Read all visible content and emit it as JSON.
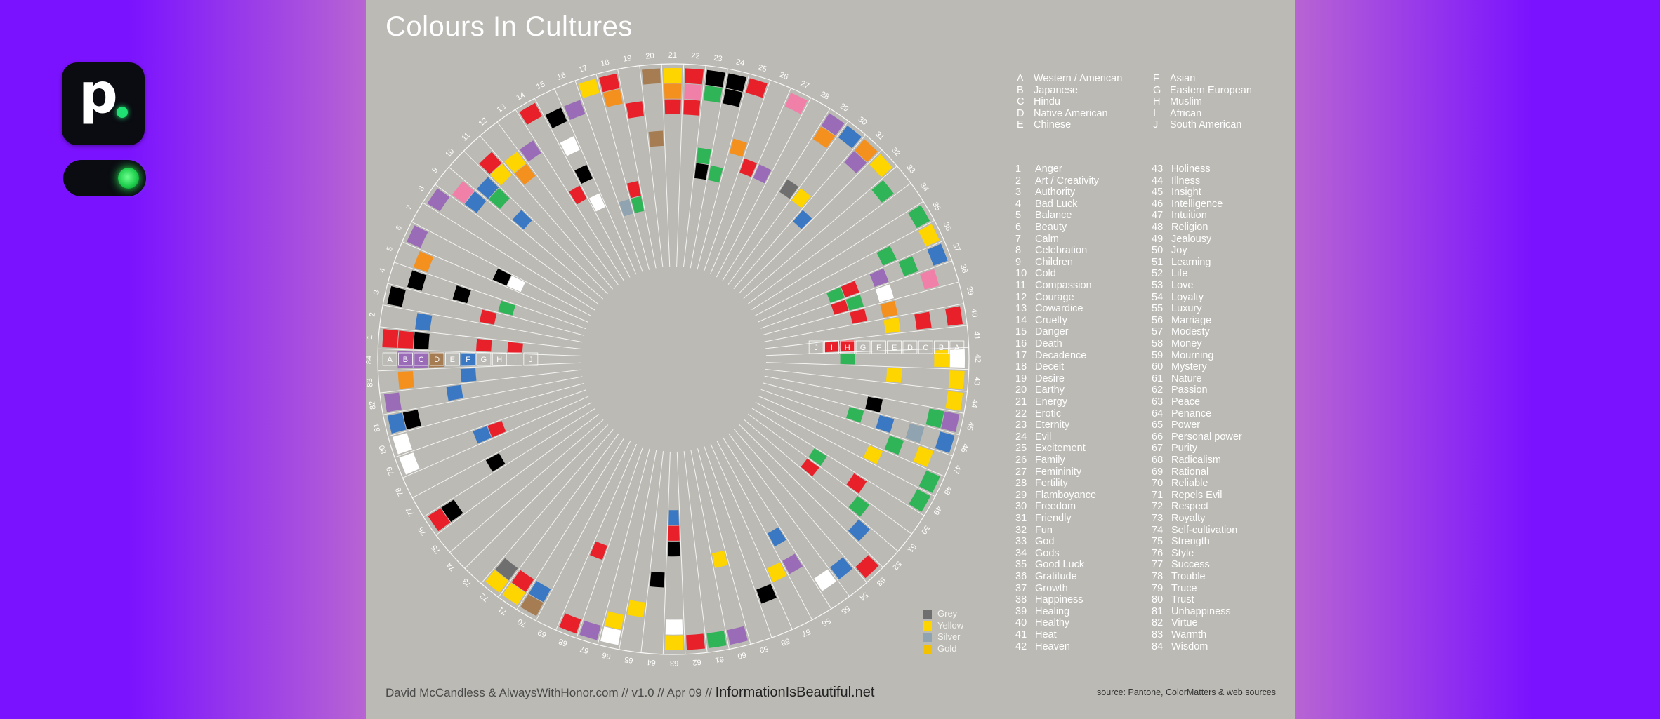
{
  "poster": {
    "title": "Colours In Cultures",
    "credit": "David McCandless & AlwaysWithHonor.com  // v1.0 // Apr 09 // ",
    "brand": "InformationIsBeautiful.net",
    "source": "source: Pantone, ColorMatters & web sources"
  },
  "cultures": [
    {
      "key": "A",
      "name": "Western / American"
    },
    {
      "key": "B",
      "name": "Japanese"
    },
    {
      "key": "C",
      "name": "Hindu"
    },
    {
      "key": "D",
      "name": "Native American"
    },
    {
      "key": "E",
      "name": "Chinese"
    },
    {
      "key": "F",
      "name": "Asian"
    },
    {
      "key": "G",
      "name": "Eastern European"
    },
    {
      "key": "H",
      "name": "Muslim"
    },
    {
      "key": "I",
      "name": "African"
    },
    {
      "key": "J",
      "name": "South American"
    }
  ],
  "meanings": [
    "Anger",
    "Art / Creativity",
    "Authority",
    "Bad Luck",
    "Balance",
    "Beauty",
    "Calm",
    "Celebration",
    "Children",
    "Cold",
    "Compassion",
    "Courage",
    "Cowardice",
    "Cruelty",
    "Danger",
    "Death",
    "Decadence",
    "Deceit",
    "Desire",
    "Earthy",
    "Energy",
    "Erotic",
    "Eternity",
    "Evil",
    "Excitement",
    "Family",
    "Femininity",
    "Fertility",
    "Flamboyance",
    "Freedom",
    "Friendly",
    "Fun",
    "God",
    "Gods",
    "Good Luck",
    "Gratitude",
    "Growth",
    "Happiness",
    "Healing",
    "Healthy",
    "Heat",
    "Heaven",
    "Holiness",
    "Illness",
    "Insight",
    "Intelligence",
    "Intuition",
    "Religion",
    "Jealousy",
    "Joy",
    "Learning",
    "Life",
    "Love",
    "Loyalty",
    "Luxury",
    "Marriage",
    "Modesty",
    "Money",
    "Mourning",
    "Mystery",
    "Nature",
    "Passion",
    "Peace",
    "Penance",
    "Power",
    "Personal power",
    "Purity",
    "Radicalism",
    "Rational",
    "Reliable",
    "Repels Evil",
    "Respect",
    "Royalty",
    "Self-cultivation",
    "Strength",
    "Style",
    "Success",
    "Trouble",
    "Truce",
    "Trust",
    "Unhappiness",
    "Virtue",
    "Warmth",
    "Wisdom"
  ],
  "metals": [
    {
      "name": "Grey",
      "color": "#6f6f6f"
    },
    {
      "name": "Yellow",
      "color": "#ffd500"
    },
    {
      "name": "Silver",
      "color": "#8fa3b0"
    },
    {
      "name": "Gold",
      "color": "#f2c200"
    }
  ],
  "palette": {
    "red": "#e8202a",
    "orange": "#f4901e",
    "yellow": "#ffd500",
    "green": "#2fb457",
    "blue": "#3a78c4",
    "purple": "#9a6cb8",
    "pink": "#f080a8",
    "brown": "#a67c52",
    "black": "#000000",
    "white": "#ffffff",
    "grey": "#6f6f6f",
    "silver": "#8fa3b0",
    "poster_bg": "#bbbab4"
  },
  "wheel_data": {
    "1": [
      "red",
      "red",
      "black",
      "",
      "",
      "",
      "red",
      "",
      "red",
      ""
    ],
    "2": [
      "",
      "",
      "blue",
      "",
      "",
      "",
      "",
      "",
      "",
      ""
    ],
    "3": [
      "black",
      "",
      "",
      "",
      "",
      "",
      "red",
      "",
      "",
      ""
    ],
    "4": [
      "",
      "black",
      "",
      "",
      "black",
      "",
      "",
      "green",
      "",
      ""
    ],
    "5": [
      "",
      "orange",
      "",
      "",
      "",
      "",
      "",
      "",
      "",
      ""
    ],
    "6": [
      "purple",
      "",
      "",
      "",
      "",
      "",
      "black",
      "white",
      "",
      ""
    ],
    "7": [
      "",
      "",
      "",
      "",
      "",
      "",
      "",
      "",
      "",
      ""
    ],
    "8": [
      "purple",
      "",
      "",
      "",
      "",
      "",
      "",
      "",
      "",
      ""
    ],
    "9": [
      "",
      "pink",
      "blue",
      "",
      "",
      "",
      "",
      "",
      "",
      ""
    ],
    "10": [
      "",
      "",
      "blue",
      "green",
      "",
      "blue",
      "",
      "",
      "",
      ""
    ],
    "11": [
      "",
      "red",
      "yellow",
      "",
      "",
      "",
      "",
      "",
      "",
      ""
    ],
    "12": [
      "",
      "",
      "yellow",
      "orange",
      "",
      "",
      "",
      "",
      "",
      ""
    ],
    "13": [
      "",
      "",
      "purple",
      "",
      "",
      "",
      "",
      "",
      "",
      ""
    ],
    "14": [
      "red",
      "",
      "",
      "",
      "",
      "",
      "red",
      "",
      "",
      ""
    ],
    "15": [
      "",
      "black",
      "",
      "white",
      "",
      "black",
      "",
      "white",
      "",
      ""
    ],
    "16": [
      "",
      "purple",
      "",
      "",
      "",
      "",
      "",
      "",
      "",
      ""
    ],
    "17": [
      "yellow",
      "",
      "",
      "",
      "",
      "",
      "",
      "",
      "silver",
      ""
    ],
    "18": [
      "red",
      "orange",
      "",
      "",
      "",
      "",
      "",
      "red",
      "green",
      ""
    ],
    "19": [
      "",
      "",
      "red",
      "",
      "",
      "",
      "",
      "",
      "",
      ""
    ],
    "20": [
      "brown",
      "",
      "",
      "",
      "brown",
      "",
      "",
      "",
      "",
      ""
    ],
    "21": [
      "yellow",
      "orange",
      "red",
      "",
      "",
      "",
      "",
      "",
      "",
      ""
    ],
    "22": [
      "red",
      "pink",
      "red",
      "",
      "",
      "",
      "",
      "",
      "",
      ""
    ],
    "23": [
      "black",
      "green",
      "",
      "",
      "",
      "green",
      "black",
      "",
      "",
      ""
    ],
    "24": [
      "black",
      "black",
      "",
      "",
      "",
      "",
      "green",
      "",
      "",
      ""
    ],
    "25": [
      "red",
      "",
      "",
      "",
      "orange",
      "",
      "",
      "",
      "",
      ""
    ],
    "26": [
      "",
      "",
      "",
      "",
      "",
      "red",
      "",
      "",
      "",
      ""
    ],
    "27": [
      "pink",
      "",
      "",
      "",
      "",
      "purple",
      "",
      "",
      "",
      ""
    ],
    "28": [
      "",
      "",
      "",
      "",
      "",
      "",
      "",
      "",
      "",
      ""
    ],
    "29": [
      "purple",
      "orange",
      "",
      "",
      "",
      "grey",
      "",
      "",
      "",
      ""
    ],
    "30": [
      "blue",
      "",
      "",
      "",
      "",
      "yellow",
      "",
      "",
      "",
      ""
    ],
    "31": [
      "orange",
      "purple",
      "",
      "",
      "",
      "",
      "blue",
      "",
      "",
      ""
    ],
    "32": [
      "yellow",
      "",
      "",
      "",
      "",
      "",
      "",
      "",
      "",
      ""
    ],
    "33": [
      "",
      "green",
      "",
      "",
      "",
      "",
      "",
      "",
      "",
      ""
    ],
    "34": [
      "",
      "",
      "",
      "",
      "",
      "",
      "",
      "",
      "",
      ""
    ],
    "35": [
      "green",
      "",
      "",
      "",
      "",
      "",
      "",
      "",
      "",
      ""
    ],
    "36": [
      "yellow",
      "",
      "",
      "green",
      "",
      "",
      "",
      "",
      "",
      ""
    ],
    "37": [
      "blue",
      "",
      "green",
      "",
      "purple",
      "",
      "red",
      "green",
      "",
      ""
    ],
    "38": [
      "",
      "pink",
      "",
      "",
      "white",
      "",
      "green",
      "red",
      "",
      ""
    ],
    "39": [
      "",
      "",
      "",
      "",
      "orange",
      "",
      "red",
      "",
      "",
      ""
    ],
    "40": [
      "red",
      "",
      "red",
      "",
      "yellow",
      "",
      "",
      "",
      "",
      ""
    ],
    "41": [
      "",
      "",
      "",
      "",
      "",
      "",
      "",
      "red",
      "red",
      ""
    ],
    "42": [
      "white",
      "yellow",
      "",
      "",
      "",
      "",
      "",
      "green",
      "",
      ""
    ],
    "43": [
      "yellow",
      "",
      "",
      "",
      "yellow",
      "",
      "",
      "",
      "",
      ""
    ],
    "44": [
      "yellow",
      "",
      "",
      "",
      "",
      "",
      "",
      "",
      "",
      ""
    ],
    "45": [
      "purple",
      "green",
      "",
      "",
      "",
      "black",
      "",
      "",
      "",
      ""
    ],
    "46": [
      "blue",
      "",
      "silver",
      "",
      "blue",
      "",
      "green",
      "",
      "",
      ""
    ],
    "47": [
      "",
      "yellow",
      "",
      "green",
      "",
      "",
      "",
      "",
      "",
      ""
    ],
    "48": [
      "green",
      "",
      "",
      "",
      "yellow",
      "",
      "",
      "",
      "",
      ""
    ],
    "49": [
      "green",
      "",
      "",
      "",
      "",
      "",
      "",
      "",
      "",
      ""
    ],
    "50": [
      "",
      "",
      "",
      "",
      "red",
      "",
      "",
      "green",
      "",
      ""
    ],
    "51": [
      "",
      "",
      "",
      "green",
      "",
      "",
      "",
      "red",
      "",
      ""
    ],
    "52": [
      "",
      "",
      "blue",
      "",
      "",
      "",
      "",
      "",
      "",
      ""
    ],
    "53": [
      "red",
      "",
      "",
      "",
      "",
      "",
      "",
      "",
      "",
      ""
    ],
    "54": [
      "",
      "blue",
      "",
      "",
      "",
      "",
      "",
      "",
      "",
      ""
    ],
    "55": [
      "",
      "white",
      "",
      "",
      "",
      "",
      "",
      "",
      "",
      ""
    ],
    "56": [
      "",
      "",
      "",
      "purple",
      "",
      "blue",
      "",
      "",
      "",
      ""
    ],
    "57": [
      "",
      "",
      "",
      "yellow",
      "",
      "",
      "",
      "",
      "",
      ""
    ],
    "58": [
      "",
      "",
      "black",
      "",
      "",
      "",
      "",
      "",
      "",
      ""
    ],
    "59": [
      "",
      "",
      "",
      "",
      "",
      "",
      "",
      "",
      "",
      ""
    ],
    "60": [
      "purple",
      "",
      "",
      "",
      "",
      "yellow",
      "",
      "",
      "",
      ""
    ],
    "61": [
      "green",
      "",
      "",
      "",
      "",
      "",
      "",
      "",
      "",
      ""
    ],
    "62": [
      "red",
      "",
      "",
      "",
      "",
      "",
      "",
      "",
      "",
      ""
    ],
    "63": [
      "yellow",
      "white",
      "",
      "",
      "",
      "",
      "black",
      "red",
      "blue",
      ""
    ],
    "64": [
      "",
      "",
      "",
      "",
      "black",
      "",
      "",
      "",
      "",
      ""
    ],
    "65": [
      "",
      "",
      "yellow",
      "",
      "",
      "",
      "",
      "",
      "",
      ""
    ],
    "66": [
      "white",
      "yellow",
      "",
      "",
      "",
      "",
      "",
      "",
      "",
      ""
    ],
    "67": [
      "purple",
      "",
      "",
      "",
      "",
      "",
      "",
      "",
      "",
      ""
    ],
    "68": [
      "red",
      "",
      "",
      "",
      "",
      "red",
      "",
      "",
      "",
      ""
    ],
    "69": [
      "",
      "",
      "",
      "",
      "",
      "",
      "",
      "",
      "",
      ""
    ],
    "70": [
      "brown",
      "blue",
      "",
      "",
      "",
      "",
      "",
      "",
      "",
      ""
    ],
    "71": [
      "yellow",
      "red",
      "",
      "",
      "",
      "",
      "",
      "",
      "",
      ""
    ],
    "72": [
      "yellow",
      "grey",
      "",
      "",
      "",
      "",
      "",
      "",
      "",
      ""
    ],
    "73": [
      "",
      "",
      "",
      "",
      "",
      "",
      "",
      "",
      "",
      ""
    ],
    "74": [
      "",
      "",
      "",
      "",
      "",
      "",
      "",
      "",
      "",
      ""
    ],
    "75": [
      "",
      "",
      "",
      "",
      "",
      "",
      "",
      "",
      "",
      ""
    ],
    "76": [
      "red",
      "black",
      "",
      "",
      "",
      "",
      "",
      "",
      "",
      ""
    ],
    "77": [
      "",
      "",
      "",
      "",
      "",
      "black",
      "",
      "",
      "",
      ""
    ],
    "78": [
      "",
      "",
      "",
      "",
      "",
      "",
      "",
      "",
      "",
      ""
    ],
    "79": [
      "white",
      "",
      "",
      "",
      "",
      "blue",
      "red",
      "",
      "",
      ""
    ],
    "80": [
      "white",
      "",
      "",
      "",
      "",
      "",
      "",
      "",
      "",
      ""
    ],
    "81": [
      "blue",
      "black",
      "",
      "",
      "",
      "",
      "",
      "",
      "",
      ""
    ],
    "82": [
      "purple",
      "",
      "",
      "",
      "blue",
      "",
      "",
      "",
      "",
      ""
    ],
    "83": [
      "",
      "orange",
      "",
      "",
      "",
      "blue",
      "",
      "",
      "",
      ""
    ],
    "84": [
      "",
      "purple",
      "purple",
      "brown",
      "",
      "blue",
      "",
      "",
      "",
      ""
    ]
  },
  "wheel_labels": {
    "left_ring": [
      "A",
      "B",
      "C",
      "D",
      "E",
      "F",
      "G",
      "H",
      "I",
      "J"
    ],
    "right_ring": [
      "J",
      "I",
      "H",
      "G",
      "F",
      "E",
      "D",
      "C",
      "B",
      "A"
    ]
  }
}
